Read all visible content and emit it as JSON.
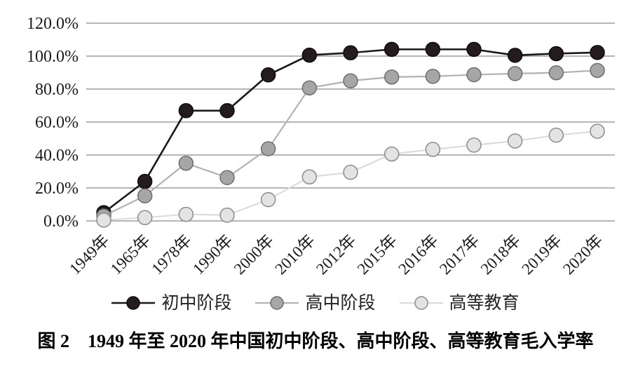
{
  "figure": {
    "caption": "图 2　1949 年至 2020 年中国初中阶段、高中阶段、高等教育毛入学率"
  },
  "colors": {
    "gridline": "#8a8a8a",
    "tick_text": "#1b1b1b",
    "background": "#ffffff"
  },
  "chart_data": {
    "type": "line",
    "title": "",
    "xlabel": "",
    "ylabel": "",
    "categories": [
      "1949年",
      "1965年",
      "1978年",
      "1990年",
      "2000年",
      "2010年",
      "2012年",
      "2015年",
      "2016年",
      "2017年",
      "2018年",
      "2019年",
      "2020年"
    ],
    "series": [
      {
        "name": "初中阶段",
        "values": [
          5.0,
          24.0,
          66.9,
          66.9,
          88.6,
          100.6,
          102.0,
          104.1,
          104.1,
          104.1,
          100.5,
          101.5,
          102.2
        ],
        "line_color": "#1c1719",
        "marker_fill": "#231b1d",
        "marker_stroke": "#0f0a0c",
        "line_width": 2.6
      },
      {
        "name": "高中阶段",
        "values": [
          3.0,
          15.2,
          35.0,
          26.3,
          43.8,
          80.7,
          85.0,
          87.3,
          87.7,
          88.7,
          89.4,
          89.9,
          91.3
        ],
        "line_color": "#b2b2b2",
        "marker_fill": "#a6a6a6",
        "marker_stroke": "#6e6e6e",
        "line_width": 2.2
      },
      {
        "name": "高等教育",
        "values": [
          0.5,
          2.0,
          4.0,
          3.5,
          12.9,
          26.7,
          29.5,
          40.6,
          43.4,
          46.0,
          48.5,
          52.0,
          54.4
        ],
        "line_color": "#dcdcdc",
        "marker_fill": "#e3e3e3",
        "marker_stroke": "#8c8c8c",
        "line_width": 2.2
      }
    ],
    "ylim": [
      0,
      120
    ],
    "ytick_values": [
      0,
      20,
      40,
      60,
      80,
      100,
      120
    ],
    "ytick_labels": [
      "0.0%",
      "20.0%",
      "40.0%",
      "60.0%",
      "80.0%",
      "100.0%",
      "120.0%"
    ],
    "grid": true,
    "legend_position": "bottom",
    "marker_radius": 10
  }
}
